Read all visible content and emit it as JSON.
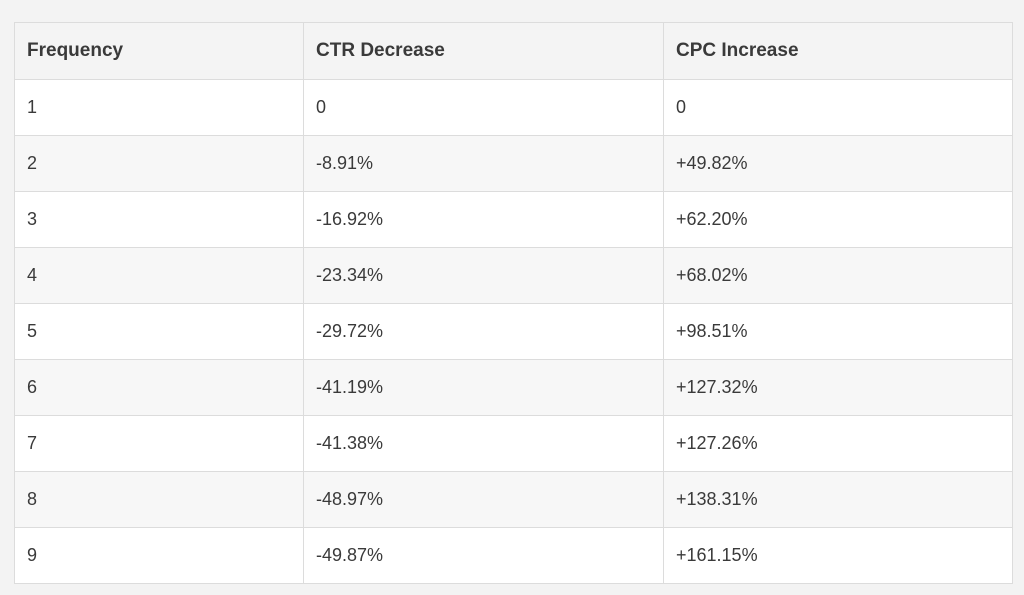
{
  "chart_data": {
    "type": "table",
    "columns": [
      "Frequency",
      "CTR Decrease",
      "CPC Increase"
    ],
    "rows": [
      [
        "1",
        "0",
        "0"
      ],
      [
        "2",
        "-8.91%",
        "+49.82%"
      ],
      [
        "3",
        "-16.92%",
        "+62.20%"
      ],
      [
        "4",
        "-23.34%",
        "+68.02%"
      ],
      [
        "5",
        "-29.72%",
        "+98.51%"
      ],
      [
        "6",
        "-41.19%",
        "+127.32%"
      ],
      [
        "7",
        "-41.38%",
        "+127.26%"
      ],
      [
        "8",
        "-48.97%",
        "+138.31%"
      ],
      [
        "9",
        "-49.87%",
        "+161.15%"
      ]
    ]
  },
  "colors": {
    "page_background": "#f3f3f3",
    "row_white": "#ffffff",
    "row_alt": "#f7f7f7",
    "border": "#dcdcdc",
    "text": "#3a3a3a"
  }
}
